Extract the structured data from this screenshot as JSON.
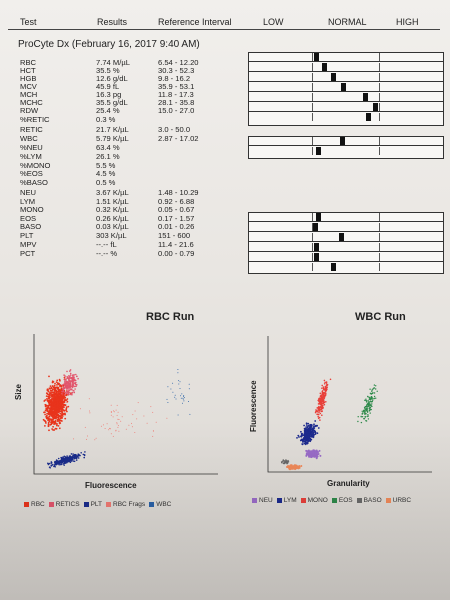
{
  "header": {
    "test": "Test",
    "results": "Results",
    "reference": "Reference Interval",
    "low": "LOW",
    "normal": "NORMAL",
    "high": "HIGH"
  },
  "title": "ProCyte Dx (February 16, 2017 9:40 AM)",
  "rows": [
    {
      "name": "RBC",
      "result": "7.74 M/µL",
      "ref": "6.54 - 12.20"
    },
    {
      "name": "HCT",
      "result": "35.5 %",
      "ref": "30.3 - 52.3"
    },
    {
      "name": "HGB",
      "result": "12.6 g/dL",
      "ref": "9.8 - 16.2"
    },
    {
      "name": "MCV",
      "result": "45.9 fL",
      "ref": "35.9 - 53.1"
    },
    {
      "name": "MCH",
      "result": "16.3 pg",
      "ref": "11.8 - 17.3"
    },
    {
      "name": "MCHC",
      "result": "35.5 g/dL",
      "ref": "28.1 - 35.8"
    },
    {
      "name": "RDW",
      "result": "25.4 %",
      "ref": "15.0 - 27.0"
    },
    {
      "name": "%RETIC",
      "result": "0.3 %",
      "ref": ""
    },
    {
      "name": "RETIC",
      "result": "21.7 K/µL",
      "ref": "3.0 - 50.0"
    },
    {
      "name": "WBC",
      "result": "5.79 K/µL",
      "ref": "2.87 - 17.02"
    },
    {
      "name": "%NEU",
      "result": "63.4 %",
      "ref": ""
    },
    {
      "name": "%LYM",
      "result": "26.1 %",
      "ref": ""
    },
    {
      "name": "%MONO",
      "result": "5.5 %",
      "ref": ""
    },
    {
      "name": "%EOS",
      "result": "4.5 %",
      "ref": ""
    },
    {
      "name": "%BASO",
      "result": "0.5 %",
      "ref": ""
    },
    {
      "name": "NEU",
      "result": "3.67 K/µL",
      "ref": "1.48 - 10.29"
    },
    {
      "name": "LYM",
      "result": "1.51 K/µL",
      "ref": "0.92 - 6.88"
    },
    {
      "name": "MONO",
      "result": "0.32 K/µL",
      "ref": "0.05 - 0.67"
    },
    {
      "name": "EOS",
      "result": "0.26 K/µL",
      "ref": "0.17 - 1.57"
    },
    {
      "name": "BASO",
      "result": "0.03 K/µL",
      "ref": "0.01 - 0.26"
    },
    {
      "name": "PLT",
      "result": "303 K/µL",
      "ref": "151 - 600"
    },
    {
      "name": "MPV",
      "result": "--.-- fL",
      "ref": "11.4 - 21.6"
    },
    {
      "name": "PCT",
      "result": "--.-- %",
      "ref": "0.00 - 0.79"
    }
  ],
  "bar_levels": {
    "group1": [
      0.04,
      0.16,
      0.3,
      0.47,
      0.82,
      0.99,
      0.87
    ],
    "group2": [
      0.45,
      0.07
    ],
    "group3": [
      0.07,
      0.02,
      0.43,
      0.03,
      0.04,
      0.3
    ]
  },
  "rbc_run": {
    "title": "RBC Run",
    "ylabel": "Size",
    "xlabel": "Fluorescence",
    "legend": [
      {
        "label": "RBC",
        "color": "#e8341c"
      },
      {
        "label": "RETICS",
        "color": "#e2566d"
      },
      {
        "label": "PLT",
        "color": "#1a2c8c"
      },
      {
        "label": "RBC Frags",
        "color": "#f07a72"
      },
      {
        "label": "WBC",
        "color": "#2a62a8"
      }
    ]
  },
  "wbc_run": {
    "title": "WBC Run",
    "ylabel": "Fluorescence",
    "xlabel": "Granularity",
    "legend": [
      {
        "label": "NEU",
        "color": "#9a6cc8"
      },
      {
        "label": "LYM",
        "color": "#1c2a8e"
      },
      {
        "label": "MONO",
        "color": "#e8403a"
      },
      {
        "label": "EOS",
        "color": "#2e8a4a"
      },
      {
        "label": "BASO",
        "color": "#6a6a6a"
      },
      {
        "label": "URBC",
        "color": "#f08a5a"
      }
    ]
  }
}
